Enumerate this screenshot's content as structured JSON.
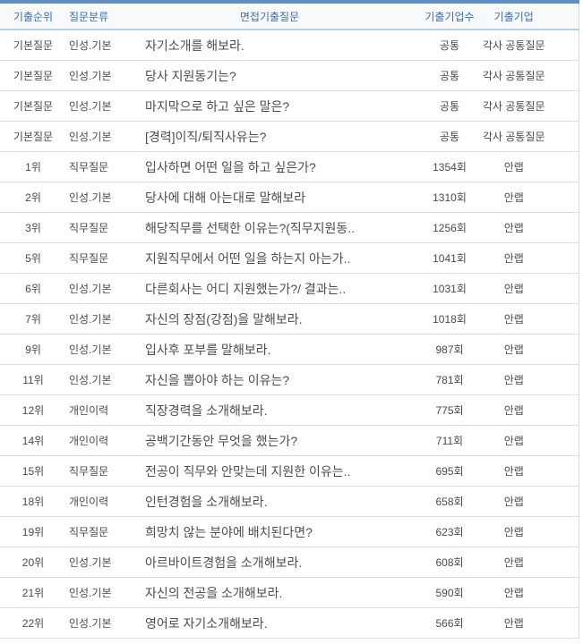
{
  "colors": {
    "top_bar": "#5e8fbe",
    "header_bg": "#f8f9fa",
    "header_text": "#3a6db6",
    "header_border": "#b9cfe6",
    "row_border": "#dcdcdc",
    "text": "#4a4a4a",
    "side_border": "#d9d9d9"
  },
  "table": {
    "columns": [
      {
        "key": "rank",
        "label": "기출순위"
      },
      {
        "key": "category",
        "label": "질문분류"
      },
      {
        "key": "question",
        "label": "면접기출질문"
      },
      {
        "key": "count",
        "label": "기출기업수"
      },
      {
        "key": "company",
        "label": "기출기업"
      }
    ],
    "rows": [
      {
        "rank": "기본질문",
        "category": "인성.기본",
        "question": "자기소개를 해보라.",
        "count": "공통",
        "company": "각사 공통질문"
      },
      {
        "rank": "기본질문",
        "category": "인성.기본",
        "question": "당사 지원동기는?",
        "count": "공통",
        "company": "각사 공통질문"
      },
      {
        "rank": "기본질문",
        "category": "인성.기본",
        "question": "마지막으로 하고 싶은 말은?",
        "count": "공통",
        "company": "각사 공통질문"
      },
      {
        "rank": "기본질문",
        "category": "인성.기본",
        "question": "[경력]이직/퇴직사유는?",
        "count": "공통",
        "company": "각사 공통질문"
      },
      {
        "rank": "1위",
        "category": "직무질문",
        "question": "입사하면 어떤 일을 하고 싶은가?",
        "count": "1354회",
        "company": "안랩"
      },
      {
        "rank": "2위",
        "category": "인성.기본",
        "question": "당사에 대해 아는대로 말해보라",
        "count": "1310회",
        "company": "안랩"
      },
      {
        "rank": "3위",
        "category": "직무질문",
        "question": "해당직무를 선택한 이유는?(직무지원동..",
        "count": "1256회",
        "company": "안랩"
      },
      {
        "rank": "5위",
        "category": "직무질문",
        "question": "지원직무에서 어떤 일을 하는지 아는가..",
        "count": "1041회",
        "company": "안랩"
      },
      {
        "rank": "6위",
        "category": "인성.기본",
        "question": "다른회사는 어디 지원했는가?/ 결과는..",
        "count": "1031회",
        "company": "안랩"
      },
      {
        "rank": "7위",
        "category": "인성.기본",
        "question": "자신의 장점(강점)을 말해보라.",
        "count": "1018회",
        "company": "안랩"
      },
      {
        "rank": "9위",
        "category": "인성.기본",
        "question": "입사후 포부를 말해보라.",
        "count": "987회",
        "company": "안랩"
      },
      {
        "rank": "11위",
        "category": "인성.기본",
        "question": "자신을 뽑아야 하는 이유는?",
        "count": "781회",
        "company": "안랩"
      },
      {
        "rank": "12위",
        "category": "개인이력",
        "question": "직장경력을 소개해보라.",
        "count": "775회",
        "company": "안랩"
      },
      {
        "rank": "14위",
        "category": "개인이력",
        "question": "공백기간동안 무엇을 했는가?",
        "count": "711회",
        "company": "안랩"
      },
      {
        "rank": "15위",
        "category": "직무질문",
        "question": "전공이 직무와 안맞는데 지원한 이유는..",
        "count": "695회",
        "company": "안랩"
      },
      {
        "rank": "18위",
        "category": "개인이력",
        "question": "인턴경험을 소개해보라.",
        "count": "658회",
        "company": "안랩"
      },
      {
        "rank": "19위",
        "category": "직무질문",
        "question": "희망치 않는 분야에 배치된다면?",
        "count": "623회",
        "company": "안랩"
      },
      {
        "rank": "20위",
        "category": "인성.기본",
        "question": "아르바이트경험을 소개해보라.",
        "count": "608회",
        "company": "안랩"
      },
      {
        "rank": "21위",
        "category": "인성.기본",
        "question": "자신의 전공을 소개해보라.",
        "count": "590회",
        "company": "안랩"
      },
      {
        "rank": "22위",
        "category": "인성.기본",
        "question": "영어로 자기소개해보라.",
        "count": "566회",
        "company": "안랩"
      }
    ]
  }
}
